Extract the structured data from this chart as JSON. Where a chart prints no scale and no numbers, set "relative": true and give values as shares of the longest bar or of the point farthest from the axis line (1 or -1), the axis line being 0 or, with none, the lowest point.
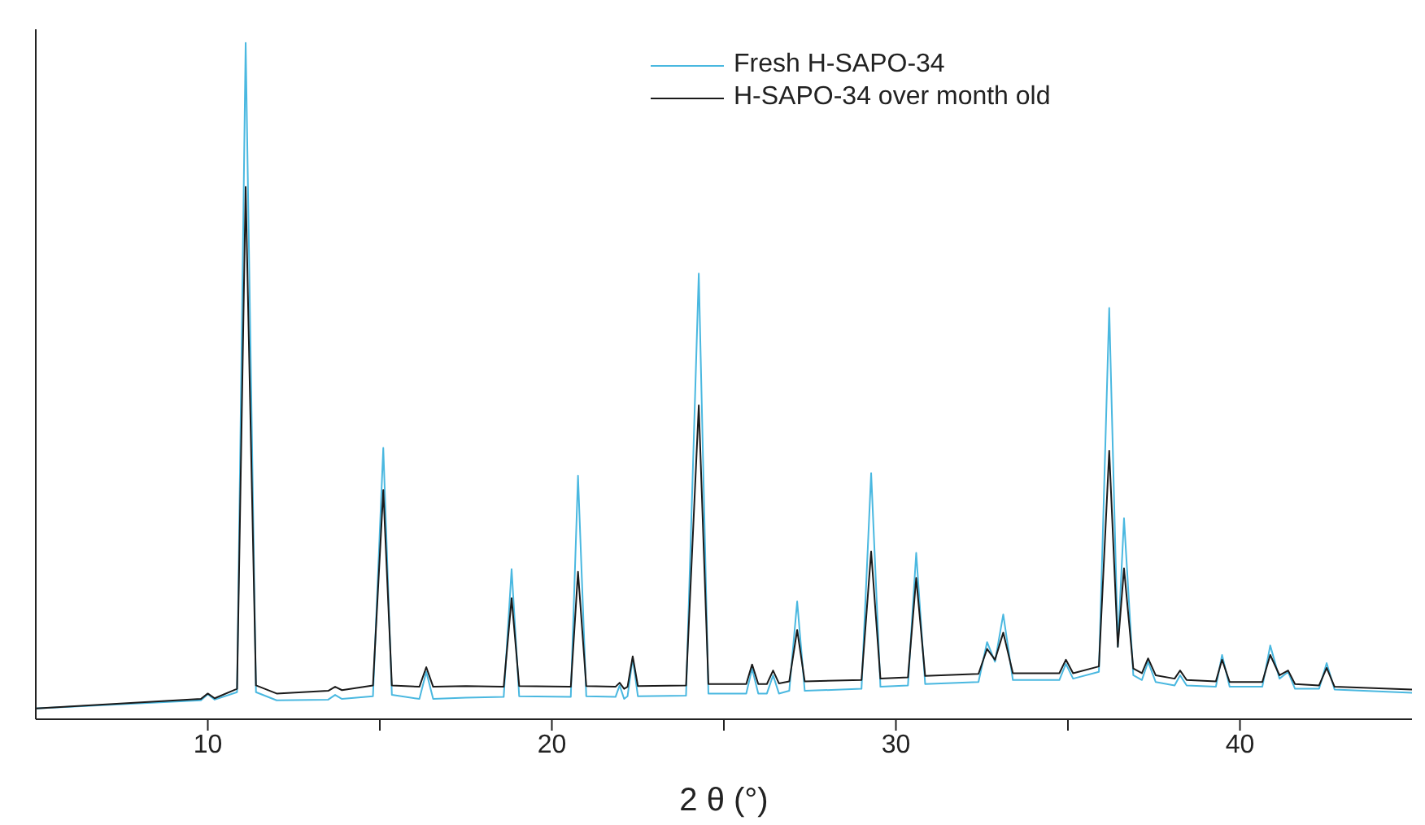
{
  "chart_data": {
    "type": "line",
    "relative": true,
    "xlabel": "2 θ (°)",
    "xlim": [
      5,
      45
    ],
    "xticks": [
      10,
      {
        "value": 15,
        "label": null
      },
      20,
      {
        "value": 25,
        "label": null
      },
      30,
      {
        "value": 35,
        "label": null
      },
      40
    ],
    "tick_labels": "x",
    "legend": "top right",
    "marker": "none",
    "line_style": "solid",
    "x": [
      5,
      9.8,
      10.0,
      10.2,
      10.85,
      11.1,
      11.4,
      12,
      13.5,
      13.7,
      13.9,
      14.8,
      15.1,
      15.35,
      16.15,
      16.35,
      16.55,
      17.5,
      18.6,
      18.83,
      19.05,
      20.55,
      20.76,
      21.0,
      21.85,
      21.97,
      22.1,
      22.2,
      22.35,
      22.5,
      23.9,
      24.27,
      24.55,
      25.65,
      25.82,
      26.0,
      26.25,
      26.43,
      26.6,
      26.9,
      27.13,
      27.35,
      29.0,
      29.28,
      29.55,
      30.35,
      30.59,
      30.85,
      32.4,
      32.65,
      32.88,
      33.12,
      33.4,
      34.75,
      34.94,
      35.15,
      35.9,
      36.2,
      36.45,
      36.63,
      36.9,
      37.15,
      37.33,
      37.55,
      38.1,
      38.26,
      38.45,
      39.3,
      39.48,
      39.7,
      40.65,
      40.88,
      41.15,
      41.4,
      41.6,
      42.3,
      42.52,
      42.75,
      45
    ],
    "series": [
      {
        "name": "Fresh H-SAPO-34",
        "color": "#4ab8e0",
        "values": [
          0.016,
          0.028,
          0.037,
          0.029,
          0.04,
          1,
          0.04,
          0.028,
          0.029,
          0.036,
          0.03,
          0.034,
          0.401,
          0.036,
          0.03,
          0.07,
          0.03,
          0.032,
          0.033,
          0.222,
          0.034,
          0.033,
          0.36,
          0.034,
          0.033,
          0.05,
          0.03,
          0.034,
          0.09,
          0.034,
          0.035,
          0.659,
          0.038,
          0.038,
          0.075,
          0.038,
          0.038,
          0.065,
          0.038,
          0.042,
          0.174,
          0.042,
          0.045,
          0.364,
          0.048,
          0.05,
          0.246,
          0.052,
          0.055,
          0.114,
          0.085,
          0.155,
          0.058,
          0.058,
          0.082,
          0.06,
          0.07,
          0.608,
          0.107,
          0.297,
          0.065,
          0.058,
          0.085,
          0.055,
          0.05,
          0.065,
          0.05,
          0.048,
          0.095,
          0.048,
          0.048,
          0.109,
          0.06,
          0.07,
          0.045,
          0.045,
          0.083,
          0.044,
          0.039
        ]
      },
      {
        "name": "H-SAPO-34 over month old",
        "color": "#1a1a1a",
        "values": [
          0.016,
          0.03,
          0.038,
          0.031,
          0.045,
          0.787,
          0.05,
          0.038,
          0.042,
          0.048,
          0.043,
          0.05,
          0.339,
          0.05,
          0.048,
          0.077,
          0.048,
          0.049,
          0.048,
          0.179,
          0.049,
          0.048,
          0.218,
          0.049,
          0.048,
          0.054,
          0.045,
          0.048,
          0.093,
          0.049,
          0.05,
          0.464,
          0.052,
          0.052,
          0.081,
          0.052,
          0.052,
          0.072,
          0.053,
          0.056,
          0.132,
          0.056,
          0.058,
          0.248,
          0.06,
          0.062,
          0.209,
          0.064,
          0.067,
          0.104,
          0.088,
          0.128,
          0.068,
          0.068,
          0.088,
          0.068,
          0.078,
          0.397,
          0.107,
          0.223,
          0.075,
          0.068,
          0.09,
          0.065,
          0.06,
          0.072,
          0.058,
          0.056,
          0.088,
          0.055,
          0.055,
          0.095,
          0.065,
          0.072,
          0.052,
          0.05,
          0.076,
          0.048,
          0.044
        ]
      }
    ]
  }
}
